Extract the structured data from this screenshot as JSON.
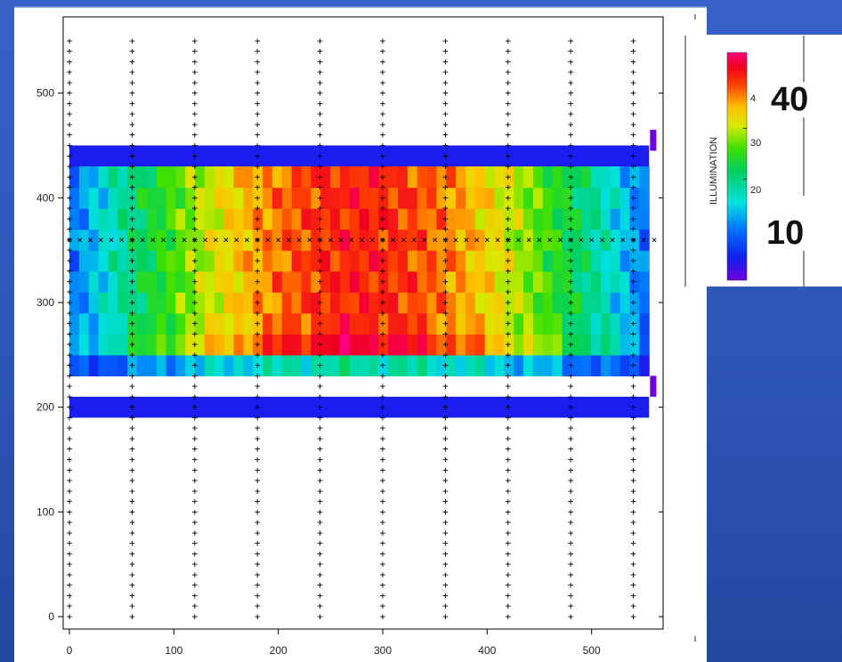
{
  "chart_data": {
    "type": "heatmap",
    "colorbar_label": "ILLUMINATION",
    "colorbar_ticks": [
      20,
      30
    ],
    "colorbar_partial_tick": "4",
    "colorbar_range": [
      0,
      45
    ],
    "overlay_labels": [
      "40",
      "10"
    ],
    "x_ticks": [
      0,
      100,
      200,
      300,
      400,
      500
    ],
    "y_ticks": [
      0,
      100,
      200,
      300,
      400,
      500
    ],
    "xlim": [
      -5,
      567
    ],
    "ylim": [
      -15,
      575
    ],
    "grid": "off",
    "bands": [
      {
        "y": [
          190,
          210
        ],
        "value": 4
      },
      {
        "y": [
          230,
          250
        ],
        "value": 18
      },
      {
        "y": [
          250,
          270
        ],
        "value": 43
      },
      {
        "y": [
          270,
          430
        ],
        "value": 40
      },
      {
        "y": [
          430,
          450
        ],
        "value": 4
      }
    ],
    "side_strips": [
      {
        "x": [
          556,
          562
        ],
        "y": [
          210,
          230
        ]
      },
      {
        "y": [
          445,
          465
        ],
        "x": [
          556,
          562
        ]
      }
    ],
    "heat_x_range": [
      0,
      555
    ],
    "plus_marker_columns_x": [
      0,
      60,
      120,
      180,
      240,
      300,
      360,
      420,
      480,
      540
    ],
    "plus_marker_rows_y": [
      0,
      10,
      20,
      30,
      40,
      50,
      60,
      70,
      80,
      90,
      100,
      110,
      120,
      130,
      140,
      150,
      160,
      170,
      180,
      190,
      200,
      210,
      220,
      230,
      240,
      250,
      260,
      270,
      280,
      290,
      300,
      310,
      320,
      330,
      340,
      350,
      360,
      370,
      380,
      390,
      400,
      410,
      420,
      430,
      440,
      450,
      460,
      470,
      480,
      490,
      500,
      510,
      520,
      530,
      540,
      550
    ],
    "x_marker_row_y": 360,
    "x_marker_spacing": 10,
    "x_marker_range": [
      0,
      560
    ]
  }
}
